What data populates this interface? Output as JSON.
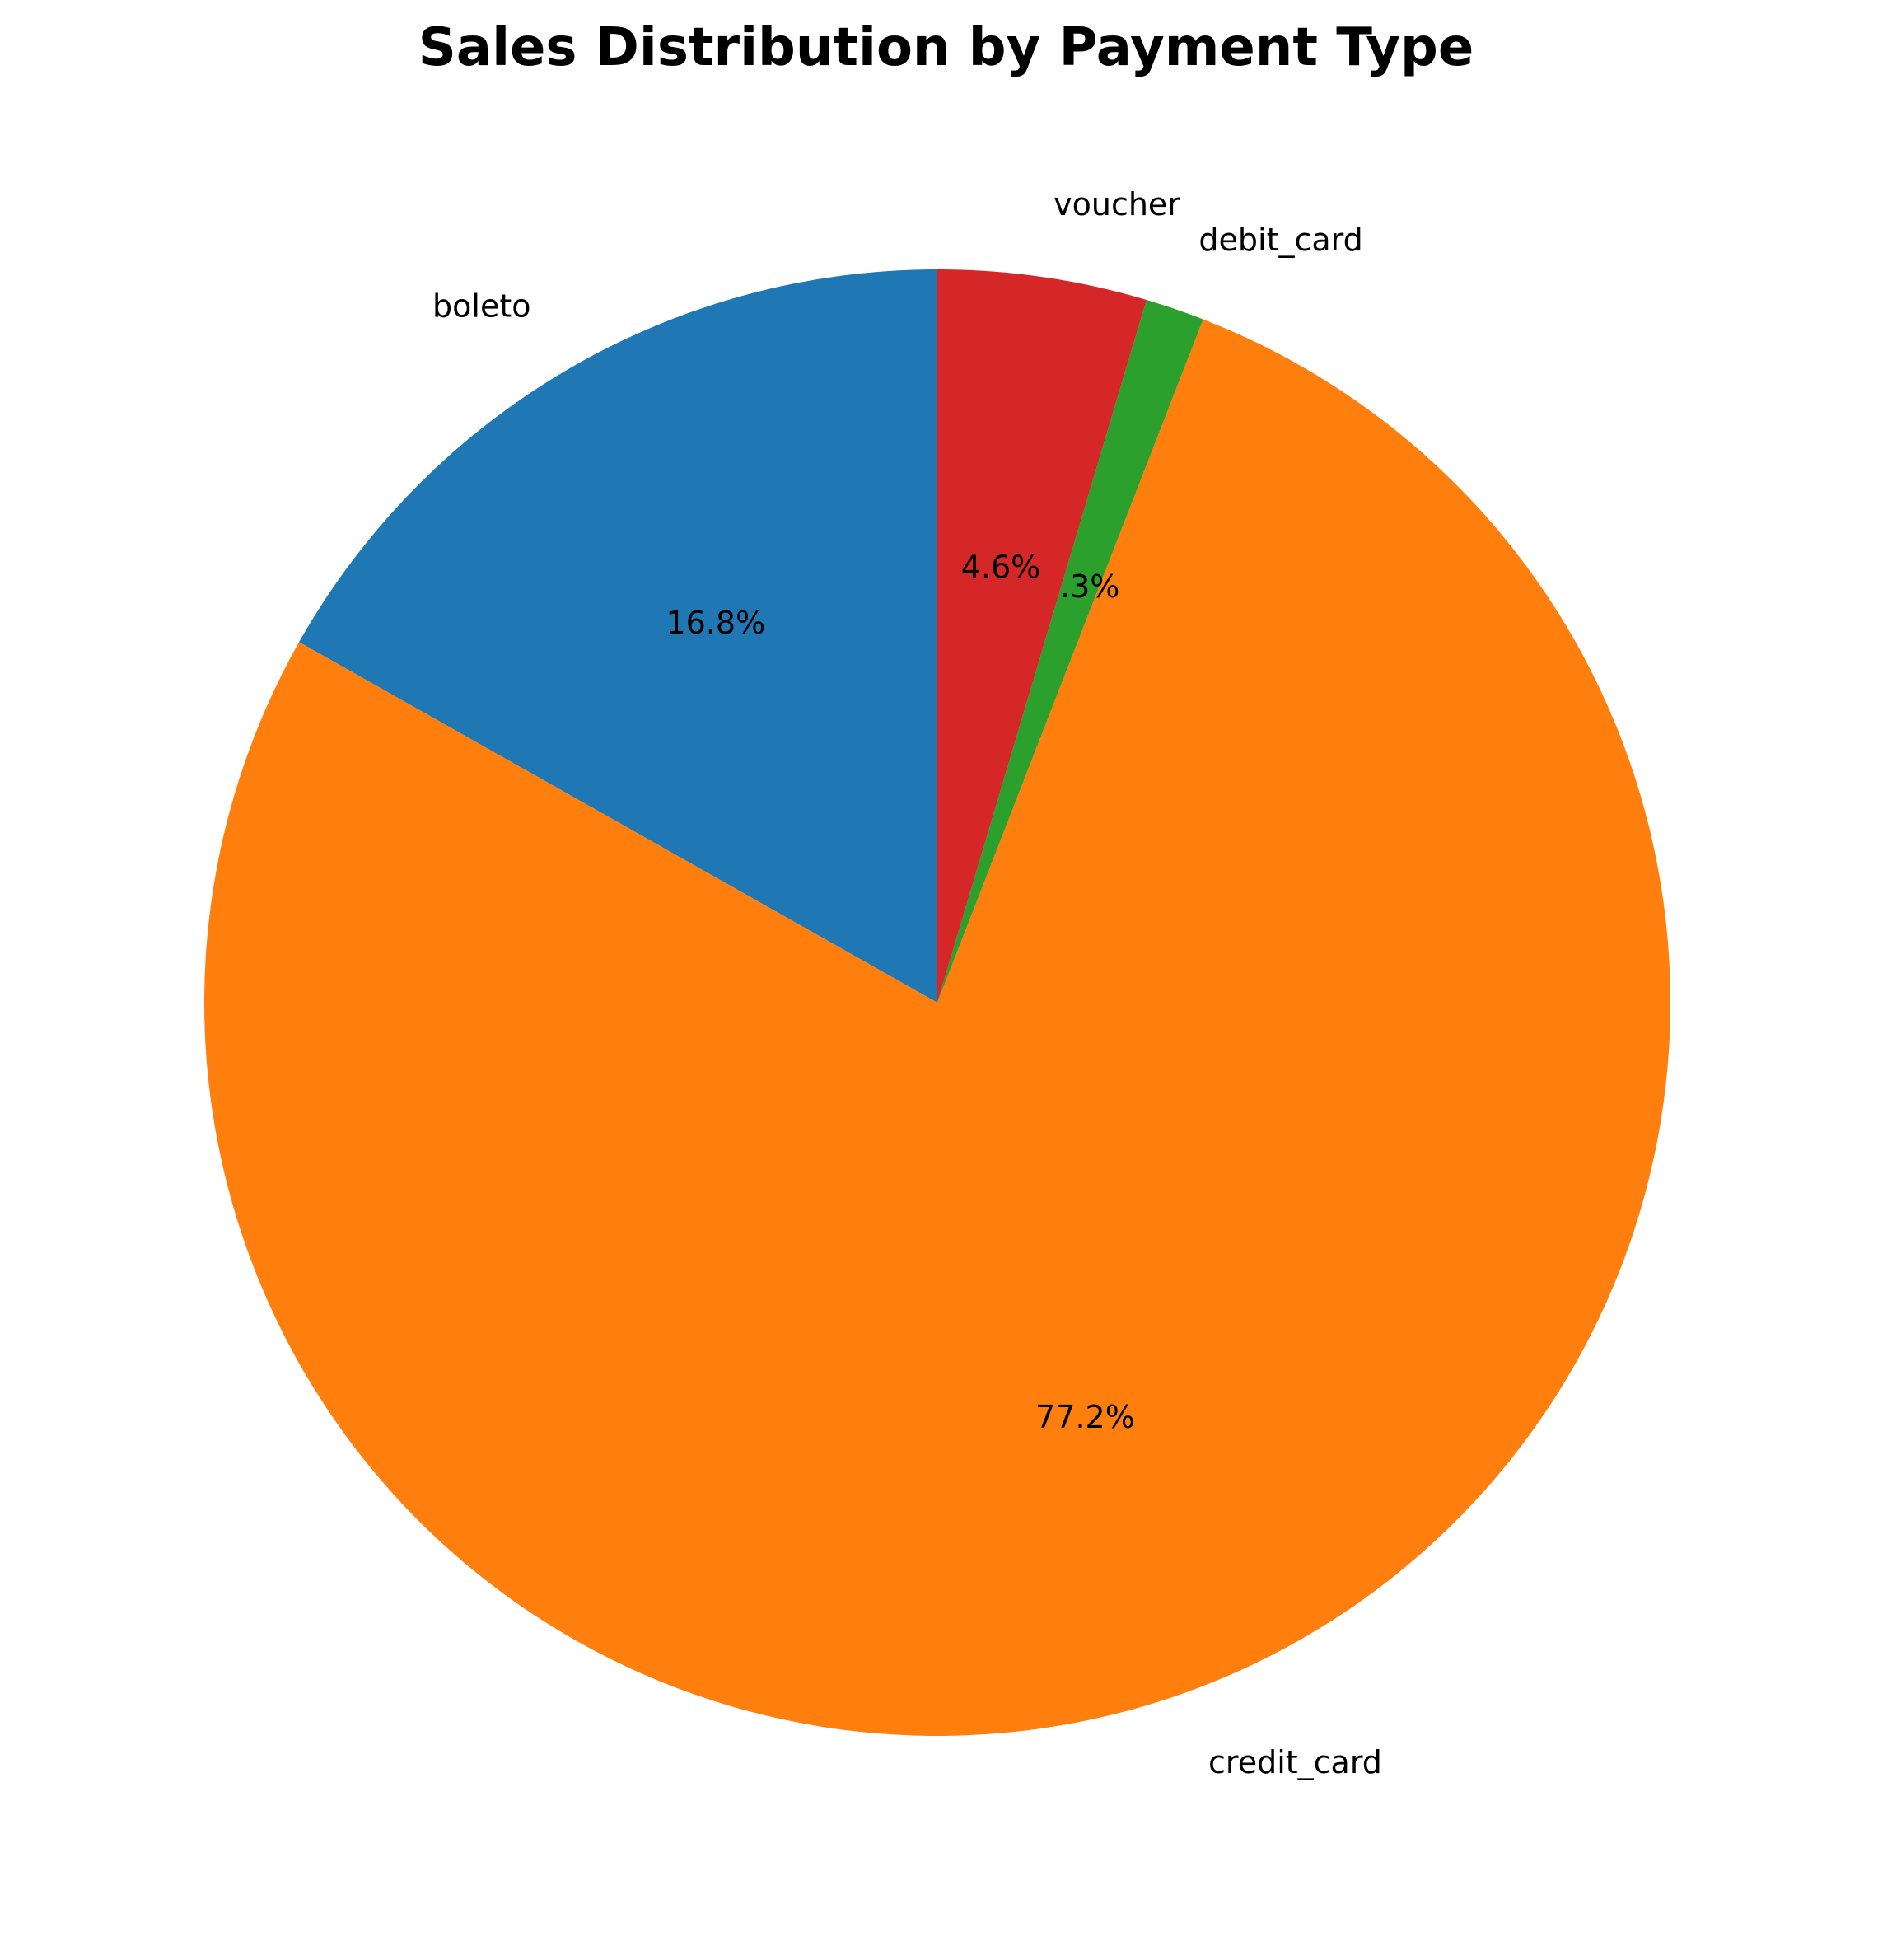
{
  "chart_data": {
    "type": "pie",
    "title": "Sales Distribution by Payment Type",
    "categories": [
      "boleto",
      "credit_card",
      "debit_card",
      "voucher"
    ],
    "values": [
      16.8,
      77.2,
      1.3,
      4.6
    ],
    "value_labels": [
      "16.8%",
      "77.2%",
      "1.3%",
      "4.6%"
    ],
    "colors": [
      "#1f77b4",
      "#ff7f0e",
      "#2ca02c",
      "#d62728"
    ],
    "start_angle_deg": 90,
    "direction": "counterclockwise",
    "legend": "none"
  }
}
